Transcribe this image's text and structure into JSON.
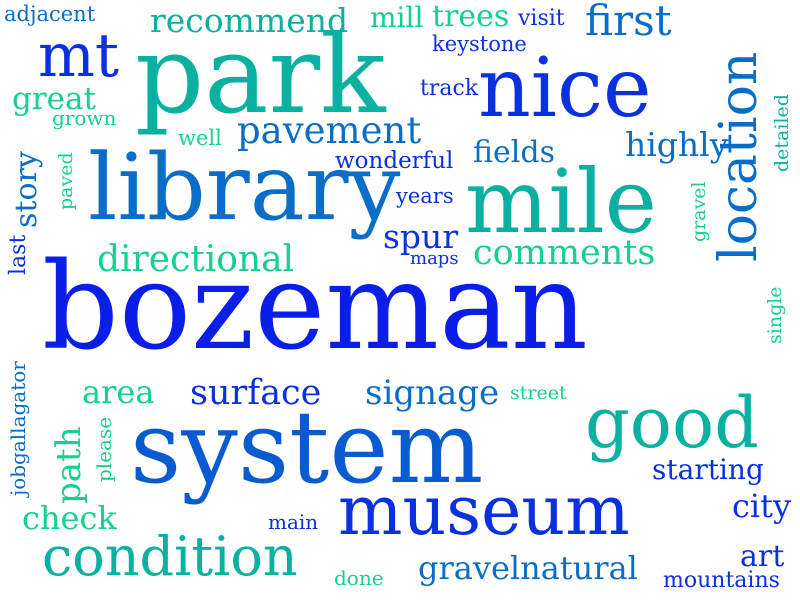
{
  "palette": {
    "blue": "#0a1ee8",
    "mid_blue": "#0a5bd0",
    "steel_blue": "#0a6ec8",
    "teal": "#0ab0a0",
    "green": "#14d28c"
  },
  "words": [
    {
      "text": "bozeman",
      "color": "#0a1ee8"
    },
    {
      "text": "system",
      "color": "#0a5bd0"
    },
    {
      "text": "park",
      "color": "#0ab0a0"
    },
    {
      "text": "library",
      "color": "#0a6ec8"
    },
    {
      "text": "mile",
      "color": "#0ab0a0"
    },
    {
      "text": "nice",
      "color": "#0a30e0"
    },
    {
      "text": "museum",
      "color": "#0a30e0"
    },
    {
      "text": "good",
      "color": "#0ab0a0"
    },
    {
      "text": "location",
      "color": "#0a6ec8"
    },
    {
      "text": "condition",
      "color": "#0ab0a0"
    },
    {
      "text": "mt",
      "color": "#0a30e0"
    },
    {
      "text": "pavement",
      "color": "#0a6ec8"
    },
    {
      "text": "first",
      "color": "#0a6ec8"
    },
    {
      "text": "recommend",
      "color": "#0ab0a0"
    },
    {
      "text": "directional",
      "color": "#14d28c"
    },
    {
      "text": "comments",
      "color": "#14d28c"
    },
    {
      "text": "surface",
      "color": "#0a30e0"
    },
    {
      "text": "signage",
      "color": "#0a6ec8"
    },
    {
      "text": "gravelnatural",
      "color": "#0a6ec8"
    },
    {
      "text": "story",
      "color": "#0a6ec8"
    },
    {
      "text": "great",
      "color": "#14d28c"
    },
    {
      "text": "spur",
      "color": "#0a30e0"
    },
    {
      "text": "fields",
      "color": "#0a6ec8"
    },
    {
      "text": "highly",
      "color": "#0a6ec8"
    },
    {
      "text": "starting",
      "color": "#0a30e0"
    },
    {
      "text": "city",
      "color": "#0a30e0"
    },
    {
      "text": "art",
      "color": "#0a30e0"
    },
    {
      "text": "path",
      "color": "#14d28c"
    },
    {
      "text": "check",
      "color": "#14d28c"
    },
    {
      "text": "area",
      "color": "#14d28c"
    },
    {
      "text": "trees",
      "color": "#14d28c"
    },
    {
      "text": "mill",
      "color": "#14d28c"
    },
    {
      "text": "visit",
      "color": "#0a30e0"
    },
    {
      "text": "wonderful",
      "color": "#0a30e0"
    },
    {
      "text": "mountains",
      "color": "#0a30e0"
    },
    {
      "text": "adjacent",
      "color": "#0a6ec8"
    },
    {
      "text": "keystone",
      "color": "#0a30e0"
    },
    {
      "text": "track",
      "color": "#0a30e0"
    },
    {
      "text": "grown",
      "color": "#14d28c"
    },
    {
      "text": "well",
      "color": "#14d28c"
    },
    {
      "text": "years",
      "color": "#0a30e0"
    },
    {
      "text": "maps",
      "color": "#0a30e0"
    },
    {
      "text": "paved",
      "color": "#14d28c"
    },
    {
      "text": "last",
      "color": "#0a30e0"
    },
    {
      "text": "gravel",
      "color": "#14d28c"
    },
    {
      "text": "detailed",
      "color": "#0ab0a0"
    },
    {
      "text": "single",
      "color": "#14d28c"
    },
    {
      "text": "street",
      "color": "#14d28c"
    },
    {
      "text": "please",
      "color": "#14d28c"
    },
    {
      "text": "jobgallagator",
      "color": "#0a6ec8"
    },
    {
      "text": "main",
      "color": "#0a30e0"
    },
    {
      "text": "done",
      "color": "#14d28c"
    }
  ]
}
